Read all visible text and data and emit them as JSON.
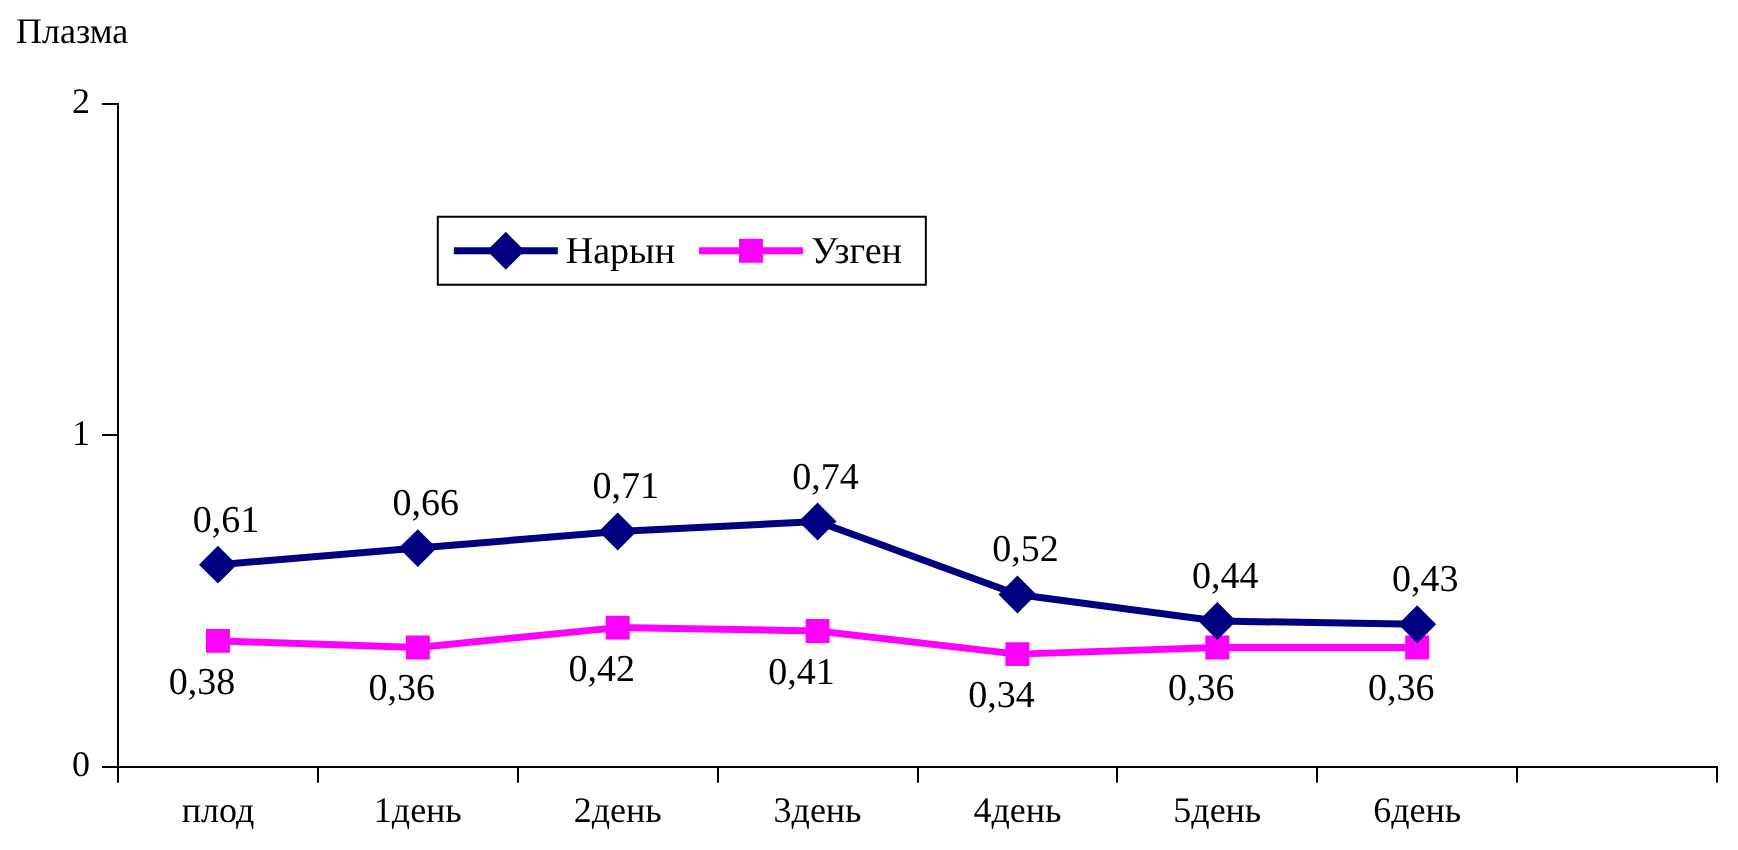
{
  "chart_data": {
    "type": "line",
    "ylabel": "Плазма",
    "categories": [
      "плод",
      "1день",
      "2день",
      "3день",
      "4день",
      "5день",
      "6день",
      null
    ],
    "series": [
      {
        "name": "Нарын",
        "color": "#000080",
        "marker": "diamond",
        "values": [
          0.61,
          0.66,
          0.71,
          0.74,
          0.52,
          0.44,
          0.43,
          null
        ],
        "value_labels": [
          "0,61",
          "0,66",
          "0,71",
          "0,74",
          "0,52",
          "0,44",
          "0,43",
          null
        ]
      },
      {
        "name": "Узген",
        "color": "#ff00ff",
        "marker": "square",
        "values": [
          0.38,
          0.36,
          0.42,
          0.41,
          0.34,
          0.36,
          0.36,
          null
        ],
        "value_labels": [
          "0,38",
          "0,36",
          "0,42",
          "0,41",
          "0,34",
          "0,36",
          "0,36",
          null
        ]
      }
    ],
    "ylim": [
      0,
      2
    ],
    "yticks": [
      0,
      1,
      2
    ],
    "grid": false,
    "legend": "top"
  }
}
